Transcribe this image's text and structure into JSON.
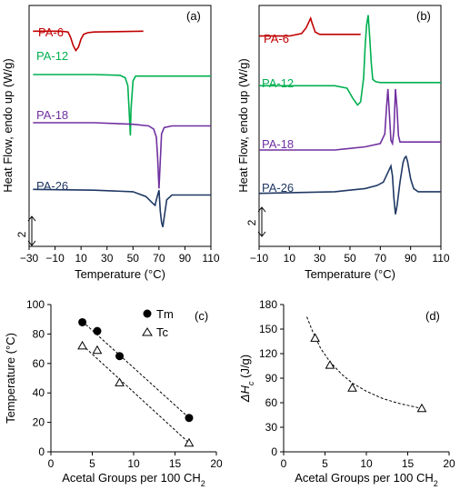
{
  "chart_data": [
    {
      "id": "a",
      "type": "line",
      "panel_label": "(a)",
      "xlabel": "Temperature (°C)",
      "ylabel": "Heat Flow, endo up  (W/g)",
      "xlim": [
        -30,
        110
      ],
      "xticks": [
        -30,
        -10,
        10,
        30,
        50,
        70,
        90,
        110
      ],
      "scale_bar": "2",
      "series": [
        {
          "name": "PA-6",
          "color": "#c00000",
          "x": [
            -27,
            -5,
            0,
            2,
            4,
            6,
            8,
            10,
            12,
            15,
            20,
            58
          ],
          "y": [
            13.4,
            13.4,
            13.35,
            13.0,
            12.5,
            12.2,
            12.4,
            12.9,
            13.2,
            13.3,
            13.35,
            13.4
          ]
        },
        {
          "name": "PA-12",
          "color": "#00b050",
          "x": [
            -27,
            20,
            40,
            44,
            46,
            47,
            48,
            48.5,
            50,
            52,
            60,
            110
          ],
          "y": [
            10.7,
            10.7,
            10.65,
            10.5,
            10.0,
            8.5,
            6.9,
            8.5,
            10.3,
            10.6,
            10.6,
            10.6
          ]
        },
        {
          "name": "PA-18",
          "color": "#7030a0",
          "x": [
            -27,
            20,
            50,
            62,
            66,
            68,
            69,
            70,
            71,
            72,
            74,
            80,
            110
          ],
          "y": [
            7.7,
            7.7,
            7.6,
            7.5,
            7.3,
            6.8,
            5.5,
            3.6,
            5.3,
            7.0,
            7.4,
            7.5,
            7.5
          ]
        },
        {
          "name": "PA-26",
          "color": "#1f3864",
          "x": [
            -27,
            20,
            50,
            60,
            65,
            67,
            68,
            70,
            71,
            72,
            73,
            74,
            76,
            80,
            90,
            110
          ],
          "y": [
            3.55,
            3.5,
            3.4,
            3.1,
            2.7,
            2.55,
            2.9,
            3.5,
            2.2,
            1.5,
            1.2,
            1.8,
            2.9,
            3.2,
            3.2,
            3.2
          ]
        }
      ]
    },
    {
      "id": "b",
      "type": "line",
      "panel_label": "(b)",
      "xlabel": "Temperature (°C)",
      "ylabel": "Heat Flow, endo up (W/g)",
      "xlim": [
        -10,
        110
      ],
      "xticks": [
        -10,
        10,
        30,
        50,
        70,
        90,
        110
      ],
      "scale_bar": "2",
      "series": [
        {
          "name": "PA-6",
          "color": "#c00000",
          "x": [
            -10,
            10,
            18,
            21,
            23,
            24,
            25,
            27,
            30,
            57
          ],
          "y": [
            13.1,
            13.1,
            13.25,
            13.6,
            14.0,
            14.2,
            13.9,
            13.35,
            13.2,
            13.2
          ]
        },
        {
          "name": "PA-12",
          "color": "#00b050",
          "x": [
            -10,
            20,
            40,
            48,
            52,
            55,
            57,
            59,
            60,
            61,
            62,
            63,
            64,
            65,
            67,
            70,
            110
          ],
          "y": [
            10.0,
            10.0,
            10.0,
            9.85,
            9.2,
            8.8,
            9.0,
            10.5,
            12.5,
            13.8,
            14.4,
            13.0,
            11.5,
            10.4,
            10.25,
            10.2,
            10.2
          ]
        },
        {
          "name": "PA-18",
          "color": "#7030a0",
          "x": [
            -10,
            40,
            60,
            70,
            73,
            74,
            75,
            76,
            77,
            78,
            79,
            80,
            81,
            82,
            83,
            85,
            110
          ],
          "y": [
            6.0,
            6.0,
            6.2,
            6.4,
            7.0,
            8.5,
            9.8,
            8.3,
            6.6,
            6.4,
            7.2,
            9.8,
            8.6,
            6.9,
            6.5,
            6.5,
            6.5
          ]
        },
        {
          "name": "PA-26",
          "color": "#1f3864",
          "x": [
            -10,
            40,
            60,
            68,
            72,
            75,
            77,
            78,
            79,
            80,
            81,
            83,
            85,
            86,
            87,
            88,
            90,
            92,
            95,
            110
          ],
          "y": [
            3.3,
            3.4,
            3.6,
            3.8,
            4.0,
            4.6,
            5.0,
            4.4,
            3.0,
            2.0,
            2.5,
            4.0,
            5.2,
            5.5,
            5.6,
            5.3,
            4.2,
            3.6,
            3.4,
            3.4
          ]
        }
      ]
    },
    {
      "id": "c",
      "type": "scatter",
      "panel_label": "(c)",
      "xlabel": "Acetal Groups per 100 CH",
      "xlabel_sub": "2",
      "ylabel": "Temperature (°C)",
      "xlim": [
        0,
        20
      ],
      "ylim": [
        0,
        100
      ],
      "xticks": [
        0,
        5,
        10,
        15,
        20
      ],
      "yticks": [
        0,
        20,
        40,
        60,
        80,
        100
      ],
      "legend_position": "top-right",
      "series": [
        {
          "name": "Tm",
          "marker": "circle-filled",
          "x": [
            3.8,
            5.6,
            8.3,
            16.7
          ],
          "y": [
            88,
            82,
            65,
            23
          ],
          "trendline": [
            [
              3.8,
              88.5
            ],
            [
              16.7,
              23
            ]
          ]
        },
        {
          "name": "Tc",
          "marker": "triangle-open",
          "x": [
            3.8,
            5.6,
            8.3,
            16.7
          ],
          "y": [
            72,
            69,
            47,
            6
          ],
          "trendline": [
            [
              3.8,
              72.5
            ],
            [
              16.7,
              6
            ]
          ]
        }
      ]
    },
    {
      "id": "d",
      "type": "scatter",
      "panel_label": "(d)",
      "xlabel": "Acetal Groups per 100 CH",
      "xlabel_sub": "2",
      "ylabel_prefix": "ΔH",
      "ylabel_sub": "c",
      "ylabel_suffix": " (J/g)",
      "xlim": [
        0,
        20
      ],
      "ylim": [
        0,
        180
      ],
      "xticks": [
        0,
        5,
        10,
        15,
        20
      ],
      "yticks": [
        0,
        30,
        60,
        90,
        120,
        150,
        180
      ],
      "series": [
        {
          "marker": "triangle-open",
          "x": [
            3.8,
            5.6,
            8.3,
            16.7
          ],
          "y": [
            139,
            106,
            78,
            53
          ],
          "trendline_x": [
            2.8,
            3.5,
            4.5,
            5.6,
            7,
            8.3,
            10,
            12,
            14,
            16.7
          ],
          "trendline_y": [
            165,
            147,
            126,
            110,
            95,
            84,
            74,
            65,
            59,
            53
          ]
        }
      ]
    }
  ]
}
